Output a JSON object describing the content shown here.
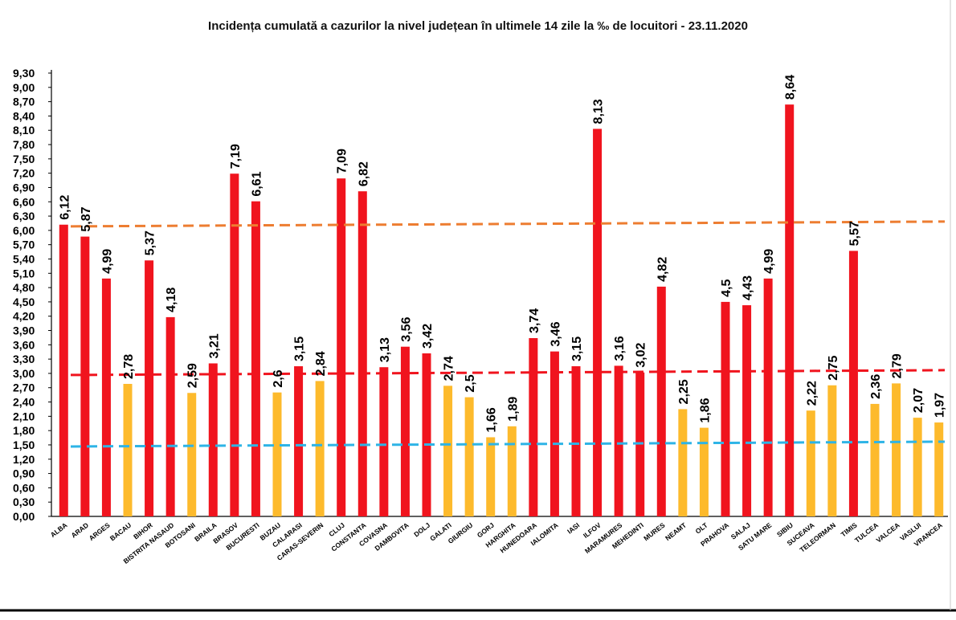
{
  "chart_data": {
    "type": "bar",
    "title": "Incidența cumulată a cazurilor la nivel județean în ultimele 14 zile la ‰ de locuitori - 23.11.2020",
    "xlabel": "",
    "ylabel": "",
    "ylim": [
      0,
      9.3
    ],
    "yticks": [
      "0,00",
      "0,30",
      "0,60",
      "0,90",
      "1,20",
      "1,50",
      "1,80",
      "2,10",
      "2,40",
      "2,70",
      "3,00",
      "3,30",
      "3,60",
      "3,90",
      "4,20",
      "4,50",
      "4,80",
      "5,10",
      "5,40",
      "5,70",
      "6,00",
      "6,30",
      "6,60",
      "6,90",
      "7,20",
      "7,50",
      "7,80",
      "8,10",
      "8,40",
      "8,70",
      "9,00",
      "9,30"
    ],
    "grid": false,
    "legend": "none",
    "categories": [
      "ALBA",
      "ARAD",
      "ARGES",
      "BACAU",
      "BIHOR",
      "BISTRITA NASAUD",
      "BOTOSANI",
      "BRAILA",
      "BRASOV",
      "BUCURESTI",
      "BUZAU",
      "CALARASI",
      "CARAS-SEVERIN",
      "CLUJ",
      "CONSTANTA",
      "COVASNA",
      "DAMBOVITA",
      "DOLJ",
      "GALATI",
      "GIURGIU",
      "GORJ",
      "HARGHITA",
      "HUNEDOARA",
      "IALOMITA",
      "IASI",
      "ILFOV",
      "MARAMURES",
      "MEHEDINTI",
      "MURES",
      "NEAMT",
      "OLT",
      "PRAHOVA",
      "SALAJ",
      "SATU MARE",
      "SIBIU",
      "SUCEAVA",
      "TELEORMAN",
      "TIMIS",
      "TULCEA",
      "VALCEA",
      "VASLUI",
      "VRANCEA"
    ],
    "values": [
      6.12,
      5.87,
      4.99,
      2.78,
      5.37,
      4.18,
      2.59,
      3.21,
      7.19,
      6.61,
      2.6,
      3.15,
      2.84,
      7.09,
      6.82,
      3.13,
      3.56,
      3.42,
      2.74,
      2.5,
      1.66,
      1.89,
      3.74,
      3.46,
      3.15,
      8.13,
      3.16,
      3.02,
      4.82,
      2.25,
      1.86,
      4.5,
      4.43,
      4.99,
      8.64,
      2.22,
      2.75,
      5.57,
      2.36,
      2.79,
      2.07,
      1.97
    ],
    "value_labels": [
      "6,12",
      "5,87",
      "4,99",
      "2,78",
      "5,37",
      "4,18",
      "2,59",
      "3,21",
      "7,19",
      "6,61",
      "2,6",
      "3,15",
      "2,84",
      "7,09",
      "6,82",
      "3,13",
      "3,56",
      "3,42",
      "2,74",
      "2,5",
      "1,66",
      "1,89",
      "3,74",
      "3,46",
      "3,15",
      "8,13",
      "3,16",
      "3,02",
      "4,82",
      "2,25",
      "1,86",
      "4,5",
      "4,43",
      "4,99",
      "8,64",
      "2,22",
      "2,75",
      "5,57",
      "2,36",
      "2,79",
      "2,07",
      "1,97"
    ],
    "threshold_lines": [
      {
        "value": 6.0,
        "color": "#ED7D31"
      },
      {
        "value": 3.0,
        "color": "#F0141E"
      },
      {
        "value": 1.5,
        "color": "#2EB4E6"
      }
    ],
    "colors": {
      "above_3": "#F0141E",
      "between_1_5_and_3": "#FDBA2C"
    }
  }
}
